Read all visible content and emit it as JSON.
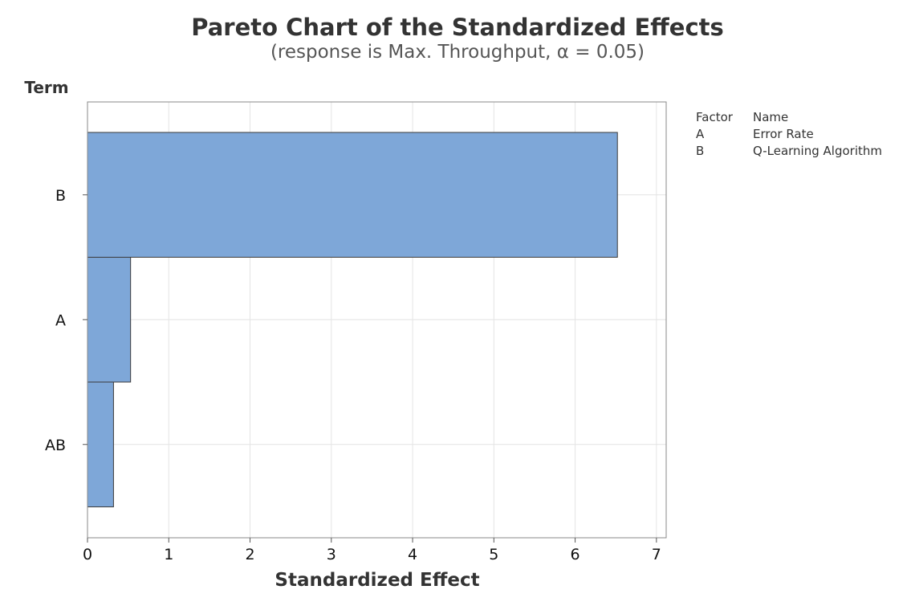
{
  "chart_data": {
    "type": "bar",
    "orientation": "horizontal",
    "title": "Pareto Chart of the Standardized Effects",
    "subtitle": "(response is Max. Throughput, α = 0.05)",
    "xlabel": "Standardized Effect",
    "ylabel": "Term",
    "categories": [
      "B",
      "A",
      "AB"
    ],
    "values": [
      6.52,
      0.53,
      0.32
    ],
    "xlim": [
      0,
      7.12
    ],
    "xticks": [
      0,
      1,
      2,
      3,
      4,
      5,
      6,
      7
    ],
    "grid": true,
    "bar_color": "#7ea7d8",
    "legend": {
      "placement": "top-right",
      "headers": [
        "Factor",
        "Name"
      ],
      "rows": [
        {
          "factor": "A",
          "name": "Error Rate"
        },
        {
          "factor": "B",
          "name": "Q-Learning Algorithm"
        }
      ]
    }
  }
}
